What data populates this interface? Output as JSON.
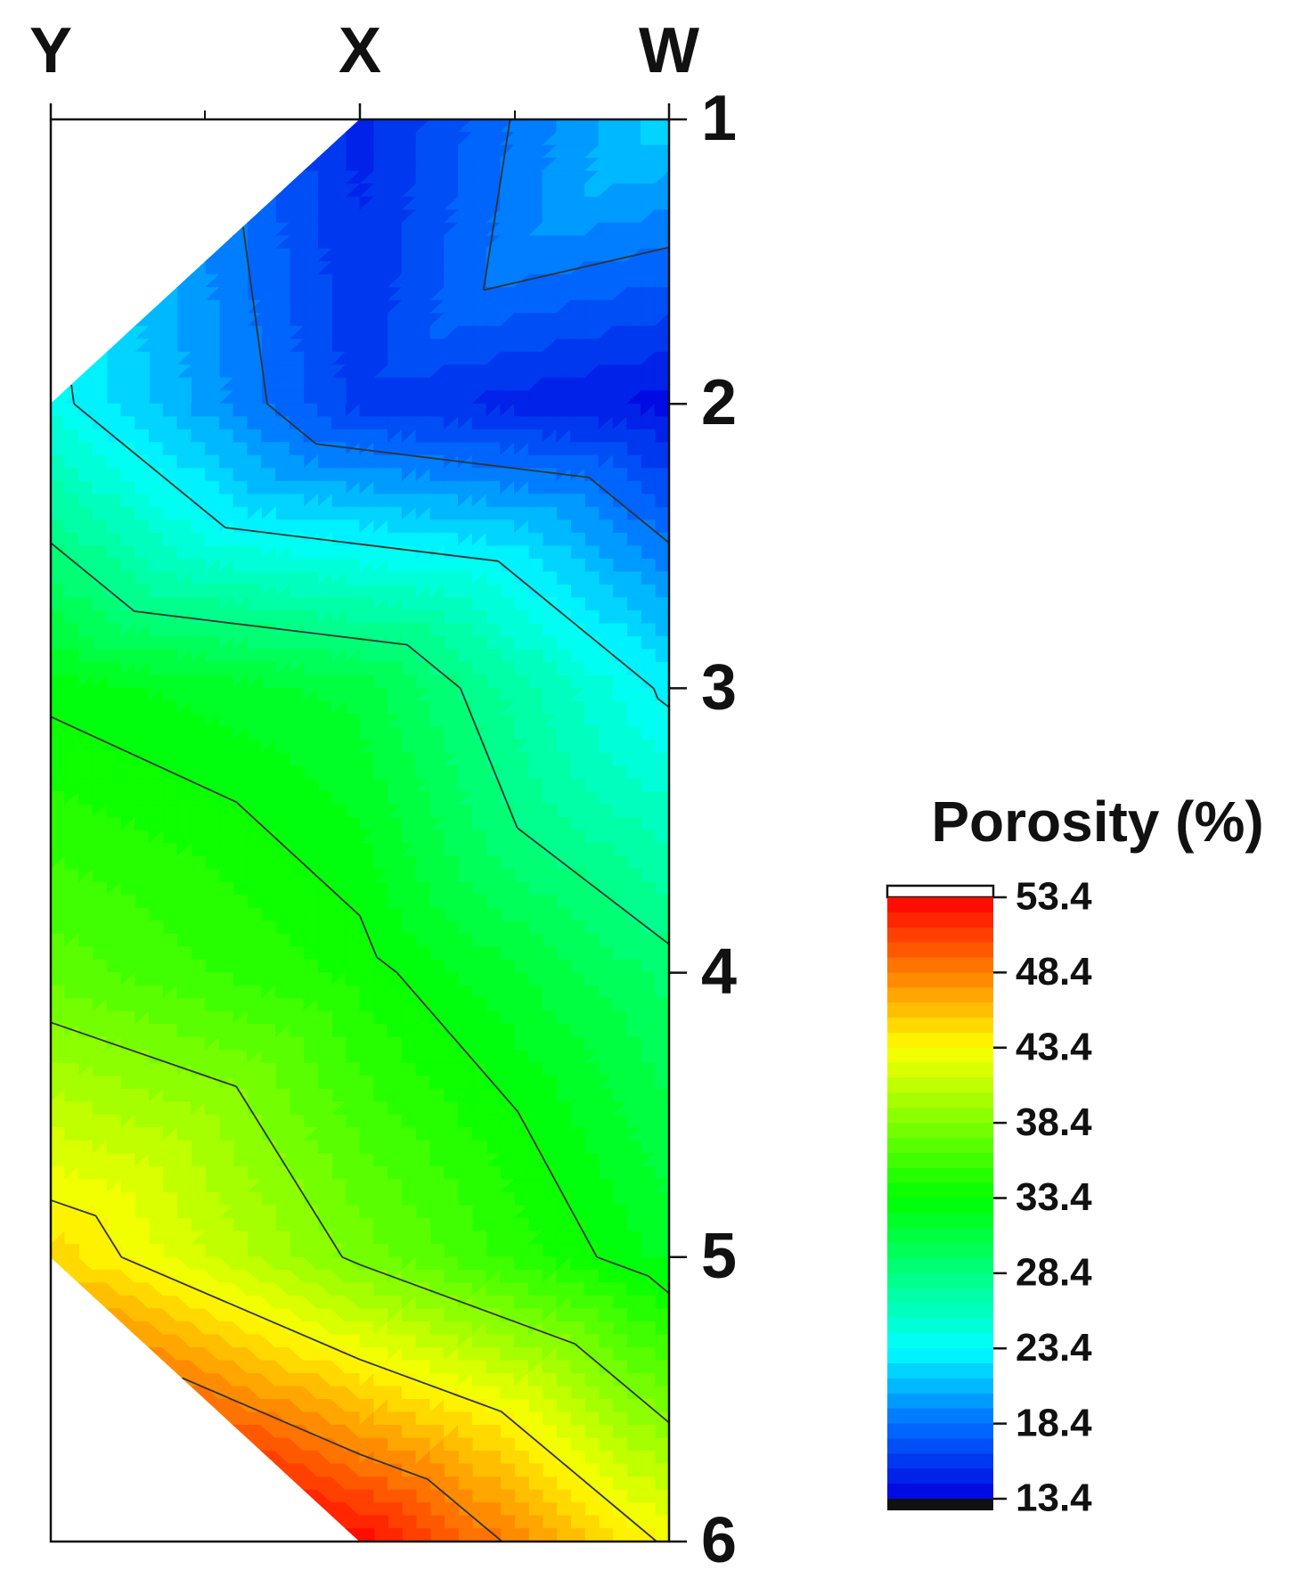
{
  "chart_data": {
    "type": "contour",
    "categories": [
      "Y",
      "X",
      "W"
    ],
    "y": [
      1,
      2,
      3,
      4,
      5,
      6
    ],
    "z": [
      [
        null,
        15,
        22
      ],
      [
        24,
        16,
        14
      ],
      [
        33,
        31,
        23
      ],
      [
        37,
        34,
        29
      ],
      [
        45,
        38,
        32
      ],
      [
        null,
        53,
        43
      ]
    ],
    "ylim": [
      1,
      6
    ],
    "yticks": [
      1,
      2,
      3,
      4,
      5,
      6
    ],
    "colorbar_title": "Porosity (%)",
    "zlim": [
      13.4,
      53.4
    ],
    "zticks": [
      13.4,
      18.4,
      23.4,
      28.4,
      33.4,
      38.4,
      43.4,
      48.4,
      53.4
    ],
    "colormap": [
      "#0000e0",
      "#0070ff",
      "#00ffff",
      "#00ff00",
      "#ffff00",
      "#ff0000"
    ],
    "contour_color": "#333333"
  }
}
